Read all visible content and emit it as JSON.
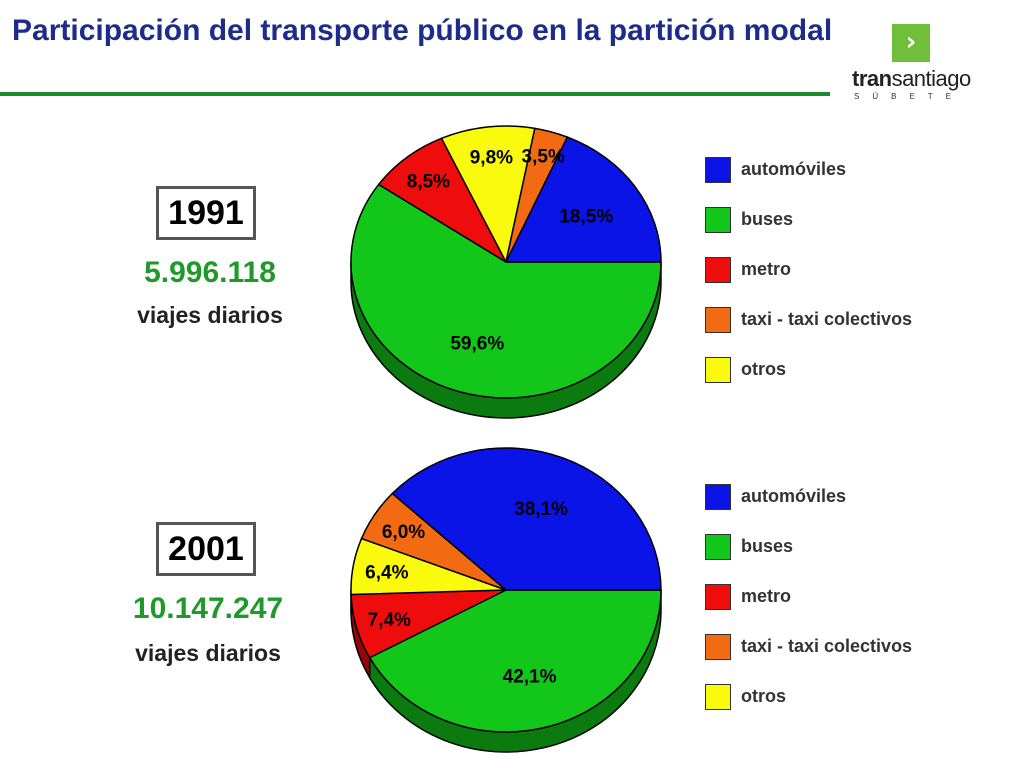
{
  "slide": {
    "title": "Participación del transporte público en la partición modal"
  },
  "logo": {
    "mark": "›",
    "word_bold": "tran",
    "word_rest": "santiago",
    "tagline": "SÚBETE"
  },
  "colors": {
    "automoviles": "#0a14e6",
    "buses": "#12c61a",
    "metro": "#ee0c0c",
    "taxi": "#f26b12",
    "otros": "#fafa0c",
    "title": "#1d2c8a",
    "trips": "#1f9a2a"
  },
  "panels": [
    {
      "year": "1991",
      "trips_number": "5.996.118",
      "trips_label": "viajes diarios"
    },
    {
      "year": "2001",
      "trips_number": "10.147.247",
      "trips_label": "viajes diarios"
    }
  ],
  "chart_data": [
    {
      "type": "pie",
      "title": "1991",
      "legend_position": "right",
      "categories": [
        "automóviles",
        "buses",
        "metro",
        "taxi -  taxi colectivos",
        "otros"
      ],
      "values": [
        18.5,
        59.6,
        8.5,
        3.5,
        9.8
      ],
      "labels": [
        "18,5%",
        "59,6%",
        "8,5%",
        "3,5%",
        "9,8%"
      ],
      "series_colors": [
        "#0a14e6",
        "#12c61a",
        "#ee0c0c",
        "#f26b12",
        "#fafa0c"
      ]
    },
    {
      "type": "pie",
      "title": "2001",
      "legend_position": "right",
      "categories": [
        "automóviles",
        "buses",
        "metro",
        "taxi -  taxi colectivos",
        "otros"
      ],
      "values": [
        38.1,
        42.1,
        7.4,
        6.0,
        6.4
      ],
      "labels": [
        "38,1%",
        "42,1%",
        "7,4%",
        "6,0%",
        "6,4%"
      ],
      "series_colors": [
        "#0a14e6",
        "#12c61a",
        "#ee0c0c",
        "#f26b12",
        "#fafa0c"
      ]
    }
  ]
}
